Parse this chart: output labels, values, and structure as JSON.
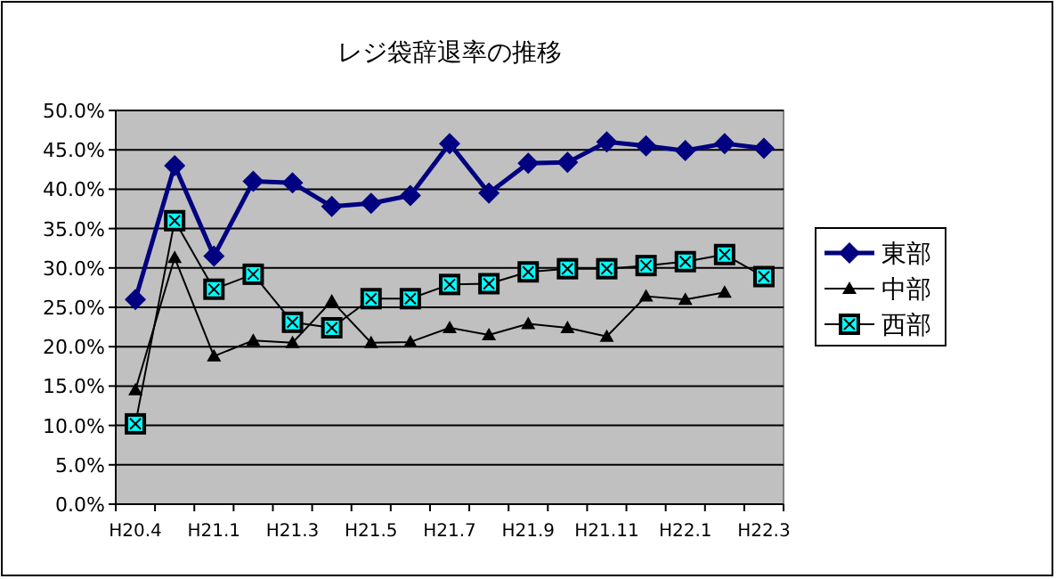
{
  "chart_data": {
    "type": "line",
    "title": "レジ袋辞退率の推移",
    "categories": [
      "H20.4",
      null,
      "H21.1",
      null,
      "H21.3",
      null,
      "H21.5",
      null,
      "H21.7",
      null,
      "H21.9",
      null,
      "H21.11",
      null,
      "H22.1",
      null,
      "H22.3"
    ],
    "ylim": [
      0,
      50
    ],
    "yticks": [
      {
        "value": 0,
        "label": "0.0%"
      },
      {
        "value": 5,
        "label": "5.0%"
      },
      {
        "value": 10,
        "label": "10.0%"
      },
      {
        "value": 15,
        "label": "15.0%"
      },
      {
        "value": 20,
        "label": "20.0%"
      },
      {
        "value": 25,
        "label": "25.0%"
      },
      {
        "value": 30,
        "label": "30.0%"
      },
      {
        "value": 35,
        "label": "35.0%"
      },
      {
        "value": 40,
        "label": "40.0%"
      },
      {
        "value": 45,
        "label": "45.0%"
      },
      {
        "value": 50,
        "label": "50.0%"
      }
    ],
    "grid": "y",
    "legend": "right",
    "series": [
      {
        "name": "東部",
        "color": "#000080",
        "marker": "diamond",
        "values": [
          26,
          43,
          31.5,
          41,
          40.8,
          37.8,
          38.2,
          39.2,
          45.8,
          39.5,
          43.3,
          43.4,
          46,
          45.5,
          44.9,
          45.8,
          45.2
        ]
      },
      {
        "name": "中部",
        "color": "#000000",
        "marker": "triangle",
        "values": [
          14.5,
          31.3,
          18.8,
          20.8,
          20.5,
          25.8,
          20.5,
          20.6,
          22.4,
          21.5,
          22.9,
          22.4,
          21.3,
          26.4,
          26,
          26.9,
          null
        ]
      },
      {
        "name": "西部",
        "color": "#000000",
        "marker": "square",
        "values": [
          10.2,
          36,
          27.3,
          29.2,
          23.1,
          22.4,
          26.1,
          26.1,
          27.9,
          28,
          29.5,
          29.9,
          29.9,
          30.3,
          30.8,
          31.7,
          28.9
        ]
      }
    ]
  }
}
